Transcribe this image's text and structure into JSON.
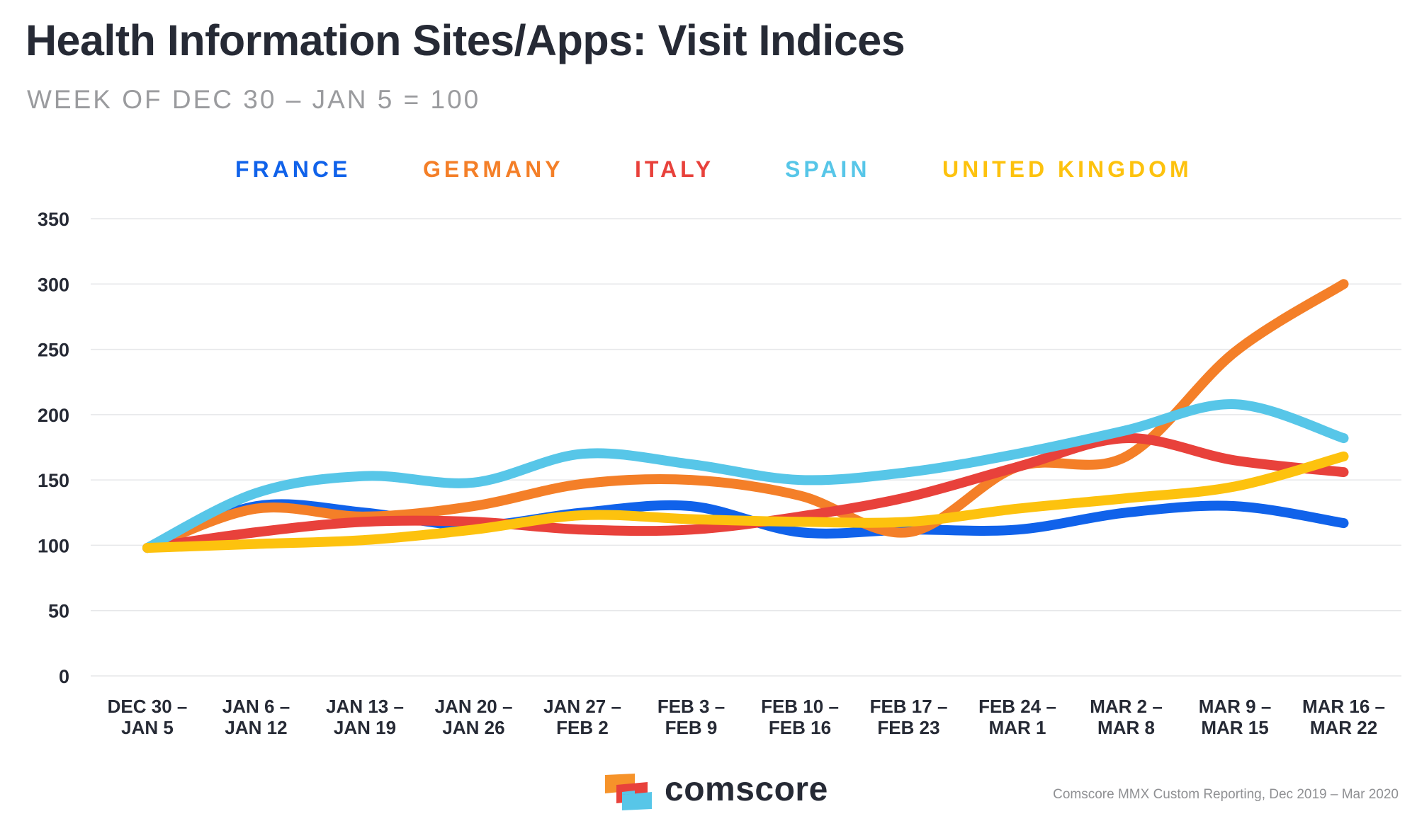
{
  "title": "Health Information Sites/Apps: Visit Indices",
  "subtitle": "WEEK OF DEC 30 – JAN 5 = 100",
  "brand": "comscore",
  "source": "Comscore MMX Custom Reporting, Dec 2019 – Mar 2020",
  "colors": {
    "France": "#1062ea",
    "Germany": "#f47f28",
    "Italy": "#e8413b",
    "Spain": "#57c6e8",
    "United Kingdom": "#fdc20e",
    "logo_orange": "#f6932a",
    "logo_red": "#e8413b",
    "logo_blue": "#57c6e8"
  },
  "chart_data": {
    "type": "line",
    "title": "Health Information Sites/Apps: Visit Indices",
    "subtitle": "WEEK OF DEC 30 – JAN 5 = 100",
    "categories": [
      [
        "DEC 30 –",
        "JAN 5"
      ],
      [
        "JAN 6 –",
        "JAN 12"
      ],
      [
        "JAN 13 –",
        "JAN 19"
      ],
      [
        "JAN 20 –",
        "JAN 26"
      ],
      [
        "JAN 27 –",
        "FEB 2"
      ],
      [
        "FEB 3 –",
        "FEB 9"
      ],
      [
        "FEB 10 –",
        "FEB 16"
      ],
      [
        "FEB 17 –",
        "FEB 23"
      ],
      [
        "FEB 24 –",
        "MAR 1"
      ],
      [
        "MAR 2 –",
        "MAR 8"
      ],
      [
        "MAR 9 –",
        "MAR 15"
      ],
      [
        "MAR 16 –",
        "MAR 22"
      ]
    ],
    "yticks": [
      "350",
      "300",
      "250",
      "200",
      "150",
      "100",
      "50",
      "0"
    ],
    "ylim": [
      0,
      350
    ],
    "grid": true,
    "legend_placement": "top",
    "series": [
      {
        "name": "FRANCE",
        "color": "#1062ea",
        "values": [
          98,
          130,
          125,
          115,
          125,
          130,
          110,
          112,
          112,
          125,
          130,
          117
        ]
      },
      {
        "name": "GERMANY",
        "color": "#f47f28",
        "values": [
          98,
          128,
          122,
          130,
          147,
          150,
          138,
          110,
          160,
          168,
          248,
          300
        ]
      },
      {
        "name": "ITALY",
        "color": "#e8413b",
        "values": [
          98,
          110,
          118,
          118,
          112,
          112,
          122,
          137,
          160,
          182,
          165,
          156
        ]
      },
      {
        "name": "SPAIN",
        "color": "#57c6e8",
        "values": [
          98,
          140,
          153,
          148,
          170,
          162,
          150,
          156,
          170,
          188,
          208,
          182
        ]
      },
      {
        "name": "UNITED KINGDOM",
        "color": "#fdc20e",
        "values": [
          98,
          101,
          104,
          112,
          123,
          120,
          118,
          118,
          128,
          136,
          145,
          168
        ]
      }
    ]
  }
}
